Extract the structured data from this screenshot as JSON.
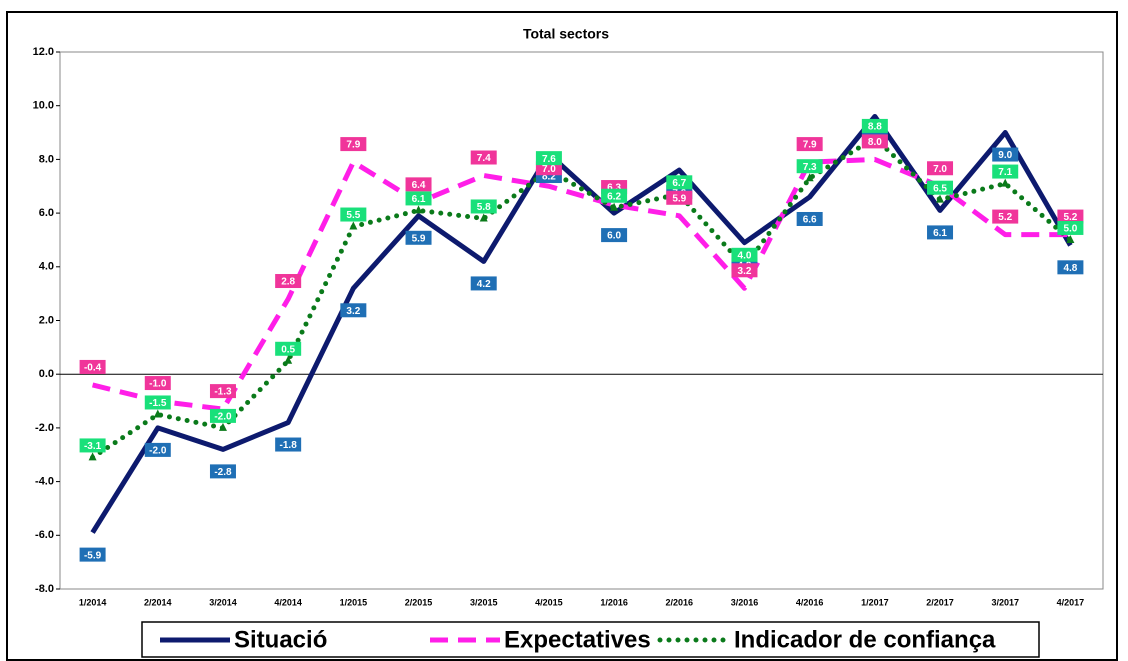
{
  "chart_data": {
    "type": "line",
    "title": "Total sectors",
    "categories": [
      "1/2014",
      "2/2014",
      "3/2014",
      "4/2014",
      "1/2015",
      "2/2015",
      "3/2015",
      "4/2015",
      "1/2016",
      "2/2016",
      "3/2016",
      "4/2016",
      "1/2017",
      "2/2017",
      "3/2017",
      "4/2017"
    ],
    "ylim": [
      -8,
      12
    ],
    "yticks": [
      {
        "value": -8,
        "label": "-8.0"
      },
      {
        "value": -6,
        "label": "-6.0"
      },
      {
        "value": -4,
        "label": "-4.0"
      },
      {
        "value": -2,
        "label": "-2.0"
      },
      {
        "value": 0,
        "label": "0.0"
      },
      {
        "value": 2,
        "label": "2.0"
      },
      {
        "value": 4,
        "label": "4.0"
      },
      {
        "value": 6,
        "label": "6.0"
      },
      {
        "value": 8,
        "label": "8.0"
      },
      {
        "value": 10,
        "label": "10.0"
      },
      {
        "value": 12,
        "label": "12.0"
      }
    ],
    "series": [
      {
        "name": "Situació",
        "color": "#0d1a6e",
        "label_color": "#1f6fb5",
        "values": [
          -5.9,
          -2.0,
          -2.8,
          -1.8,
          3.2,
          5.9,
          4.2,
          8.2,
          6.0,
          7.6,
          4.9,
          6.6,
          9.6,
          6.1,
          9.0,
          4.8
        ],
        "value_labels": [
          "-5.9",
          "-2.0",
          "-2.8",
          "-1.8",
          "3.2",
          "5.9",
          "4.2",
          "8.2",
          "6.0",
          "7.6",
          "4.9",
          "6.6",
          "9.6",
          "6.1",
          "9.0",
          "4.8"
        ]
      },
      {
        "name": "Expectatives",
        "color": "#ff1ee8",
        "label_color": "#f0359a",
        "values": [
          -0.4,
          -1.0,
          -1.3,
          2.8,
          7.9,
          6.4,
          7.4,
          7.0,
          6.3,
          5.9,
          3.2,
          7.9,
          8.0,
          7.0,
          5.2,
          5.2
        ],
        "value_labels": [
          "-0.4",
          "-1.0",
          "-1.3",
          "2.8",
          "7.9",
          "6.4",
          "7.4",
          "7.0",
          "6.3",
          "5.9",
          "3.2",
          "7.9",
          "8.0",
          "7.0",
          "5.2",
          "5.2"
        ]
      },
      {
        "name": "Indicador de confiança",
        "color": "#0a7a1a",
        "label_color": "#19e07a",
        "values": [
          -3.1,
          -1.5,
          -2.0,
          0.5,
          5.5,
          6.1,
          5.8,
          7.6,
          6.2,
          6.7,
          4.0,
          7.3,
          8.8,
          6.5,
          7.1,
          5.0
        ],
        "value_labels": [
          "-3.1",
          "-1.5",
          "-2.0",
          "0.5",
          "5.5",
          "6.1",
          "5.8",
          "7.6",
          "6.2",
          "6.7",
          "4.0",
          "7.3",
          "8.8",
          "6.5",
          "7.1",
          "5.0"
        ]
      }
    ]
  }
}
